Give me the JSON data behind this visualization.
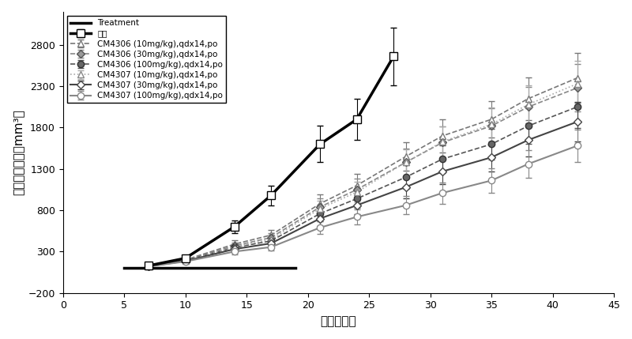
{
  "title": "",
  "xlabel": "接种后天数",
  "ylabel": "肿瘤平均体积（mm³）",
  "xlim": [
    0,
    45
  ],
  "ylim": [
    -200,
    3200
  ],
  "xticks": [
    0,
    5,
    10,
    15,
    20,
    25,
    30,
    35,
    40,
    45
  ],
  "yticks": [
    -200,
    300,
    800,
    1300,
    1800,
    2300,
    2800
  ],
  "series": [
    {
      "label": "对照",
      "x": [
        7,
        10,
        14,
        17,
        21,
        24,
        27
      ],
      "y": [
        130,
        220,
        600,
        980,
        1600,
        1900,
        2660
      ],
      "yerr": [
        15,
        30,
        80,
        120,
        220,
        250,
        350
      ],
      "color": "#000000",
      "linewidth": 2.5,
      "linestyle": "-",
      "marker": "s",
      "markersize": 7,
      "markerfacecolor": "white",
      "markeredgecolor": "#000000",
      "zorder": 10
    },
    {
      "label": "CM4306 (10mg/kg),qdx14,po",
      "x": [
        7,
        10,
        14,
        17,
        21,
        24,
        28,
        31,
        35,
        38,
        42
      ],
      "y": [
        130,
        200,
        390,
        500,
        880,
        1100,
        1450,
        1700,
        1900,
        2150,
        2400
      ],
      "yerr": [
        15,
        25,
        45,
        60,
        110,
        140,
        170,
        200,
        220,
        260,
        300
      ],
      "color": "#777777",
      "linewidth": 1.2,
      "linestyle": "--",
      "marker": "^",
      "markersize": 6,
      "markerfacecolor": "white",
      "markeredgecolor": "#777777",
      "zorder": 5
    },
    {
      "label": "CM4306 (30mg/kg),qdx14,po",
      "x": [
        7,
        10,
        14,
        17,
        21,
        24,
        28,
        31,
        35,
        38,
        42
      ],
      "y": [
        128,
        195,
        370,
        470,
        840,
        1050,
        1380,
        1620,
        1820,
        2050,
        2280
      ],
      "yerr": [
        14,
        23,
        42,
        55,
        105,
        130,
        165,
        190,
        210,
        245,
        285
      ],
      "color": "#888888",
      "linewidth": 1.2,
      "linestyle": "--",
      "marker": "D",
      "markersize": 5,
      "markerfacecolor": "#999999",
      "markeredgecolor": "#555555",
      "zorder": 5
    },
    {
      "label": "CM4306 (100mg/kg),qdx14,po",
      "x": [
        7,
        10,
        14,
        17,
        21,
        24,
        28,
        31,
        35,
        38,
        42
      ],
      "y": [
        125,
        190,
        350,
        430,
        760,
        940,
        1200,
        1420,
        1600,
        1820,
        2050
      ],
      "yerr": [
        13,
        22,
        38,
        50,
        95,
        115,
        145,
        168,
        188,
        215,
        255
      ],
      "color": "#555555",
      "linewidth": 1.2,
      "linestyle": "--",
      "marker": "o",
      "markersize": 6,
      "markerfacecolor": "#666666",
      "markeredgecolor": "#333333",
      "zorder": 5
    },
    {
      "label": "CM4307 (10mg/kg),qdx14,po",
      "x": [
        7,
        10,
        14,
        17,
        21,
        24,
        28,
        31,
        35,
        38,
        42
      ],
      "y": [
        126,
        188,
        355,
        450,
        820,
        1020,
        1380,
        1630,
        1840,
        2080,
        2330
      ],
      "yerr": [
        14,
        22,
        40,
        52,
        100,
        125,
        160,
        185,
        205,
        235,
        275
      ],
      "color": "#aaaaaa",
      "linewidth": 1.2,
      "linestyle": ":",
      "marker": "^",
      "markersize": 6,
      "markerfacecolor": "white",
      "markeredgecolor": "#888888",
      "zorder": 5
    },
    {
      "label": "CM4307 (30mg/kg),qdx14,po",
      "x": [
        7,
        10,
        14,
        17,
        21,
        24,
        28,
        31,
        35,
        38,
        42
      ],
      "y": [
        123,
        185,
        330,
        400,
        700,
        860,
        1080,
        1270,
        1440,
        1650,
        1870
      ],
      "yerr": [
        13,
        21,
        35,
        46,
        88,
        108,
        132,
        155,
        175,
        200,
        238
      ],
      "color": "#444444",
      "linewidth": 1.5,
      "linestyle": "-",
      "marker": "D",
      "markersize": 5,
      "markerfacecolor": "white",
      "markeredgecolor": "#444444",
      "zorder": 5
    },
    {
      "label": "CM4307 (100mg/kg),qdx14,po",
      "x": [
        7,
        10,
        14,
        17,
        21,
        24,
        28,
        31,
        35,
        38,
        42
      ],
      "y": [
        120,
        180,
        300,
        355,
        590,
        720,
        860,
        1010,
        1160,
        1360,
        1580
      ],
      "yerr": [
        12,
        20,
        32,
        40,
        75,
        92,
        110,
        128,
        145,
        168,
        200
      ],
      "color": "#888888",
      "linewidth": 1.5,
      "linestyle": "-",
      "marker": "o",
      "markersize": 6,
      "markerfacecolor": "white",
      "markeredgecolor": "#888888",
      "zorder": 5
    }
  ],
  "treatment_line": {
    "x": [
      5,
      19
    ],
    "y": [
      100,
      100
    ],
    "color": "#000000",
    "linewidth": 2.5,
    "label": "Treatment"
  },
  "background_color": "#ffffff",
  "legend_fontsize": 7.5,
  "axis_fontsize": 11,
  "tick_fontsize": 9
}
